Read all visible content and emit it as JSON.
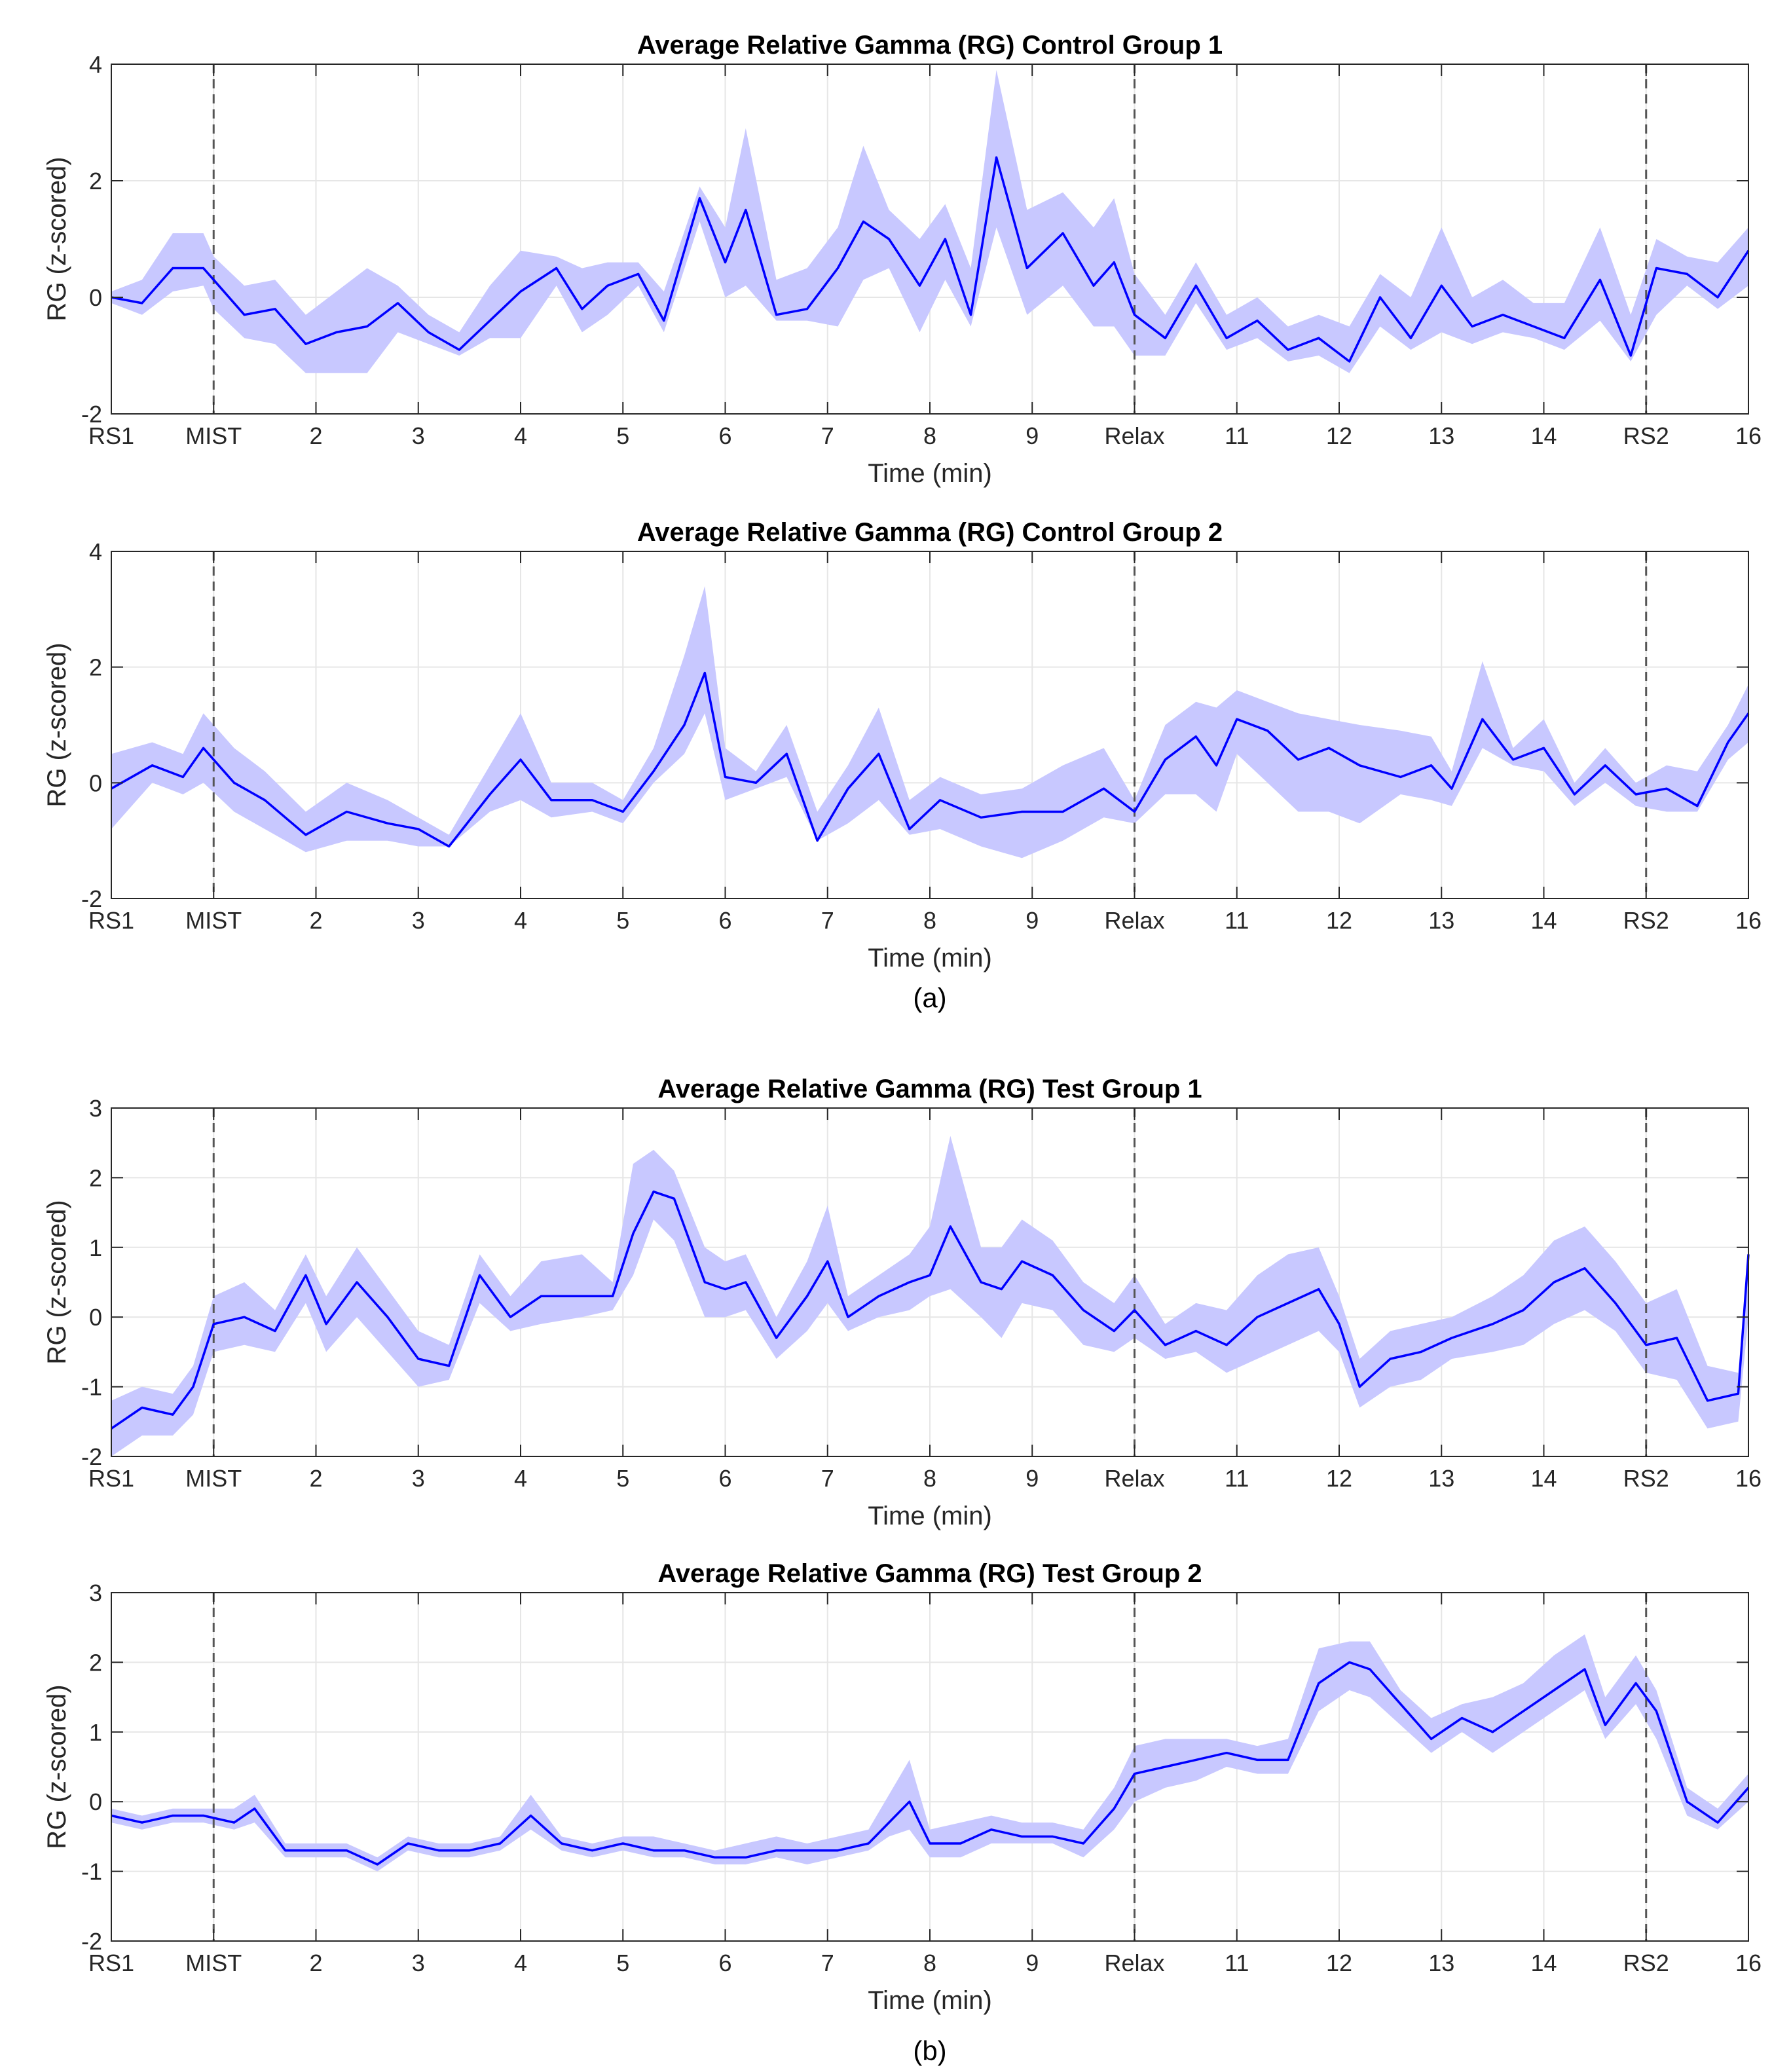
{
  "figure": {
    "label_a": "(a)",
    "label_b": "(b)"
  },
  "chart_data": [
    {
      "type": "line",
      "title": "Average Relative Gamma (RG) Control Group 1",
      "xlabel": "Time (min)",
      "ylabel": "RG (z-scored)",
      "xlim": [
        0,
        16
      ],
      "ylim": [
        -2,
        4
      ],
      "yticks": [
        -2,
        0,
        2,
        4
      ],
      "xtick_labels": [
        "RS1",
        "MIST",
        "2",
        "3",
        "4",
        "5",
        "6",
        "7",
        "8",
        "9",
        "Relax",
        "11",
        "12",
        "13",
        "14",
        "RS2",
        "16"
      ],
      "phase_markers": [
        1,
        10,
        15
      ],
      "grid": true,
      "line_color": "#0000ff",
      "band_color": "#c8c8ff",
      "x": [
        0,
        0.3,
        0.6,
        0.9,
        1.0,
        1.3,
        1.6,
        1.9,
        2.2,
        2.5,
        2.8,
        3.1,
        3.4,
        3.7,
        4.0,
        4.35,
        4.6,
        4.85,
        5.15,
        5.4,
        5.75,
        6.0,
        6.2,
        6.5,
        6.8,
        7.1,
        7.35,
        7.6,
        7.9,
        8.15,
        8.4,
        8.65,
        8.95,
        9.3,
        9.6,
        9.8,
        10.0,
        10.3,
        10.6,
        10.9,
        11.2,
        11.5,
        11.8,
        12.1,
        12.4,
        12.7,
        13.0,
        13.3,
        13.6,
        13.9,
        14.2,
        14.55,
        14.85,
        15.1,
        15.4,
        15.7,
        16.0
      ],
      "mean": [
        0.0,
        -0.1,
        0.5,
        0.5,
        0.3,
        -0.3,
        -0.2,
        -0.8,
        -0.6,
        -0.5,
        -0.1,
        -0.6,
        -0.9,
        -0.4,
        0.1,
        0.5,
        -0.2,
        0.2,
        0.4,
        -0.4,
        1.7,
        0.6,
        1.5,
        -0.3,
        -0.2,
        0.5,
        1.3,
        1.0,
        0.2,
        1.0,
        -0.3,
        2.4,
        0.5,
        1.1,
        0.2,
        0.6,
        -0.3,
        -0.7,
        0.2,
        -0.7,
        -0.4,
        -0.9,
        -0.7,
        -1.1,
        0.0,
        -0.7,
        0.2,
        -0.5,
        -0.3,
        -0.5,
        -0.7,
        0.3,
        -1.0,
        0.5,
        0.4,
        0.0,
        0.8
      ],
      "upper": [
        0.1,
        0.3,
        1.1,
        1.1,
        0.7,
        0.2,
        0.3,
        -0.3,
        0.1,
        0.5,
        0.2,
        -0.3,
        -0.6,
        0.2,
        0.8,
        0.7,
        0.5,
        0.6,
        0.6,
        0.1,
        1.9,
        1.2,
        2.9,
        0.3,
        0.5,
        1.2,
        2.6,
        1.5,
        1.0,
        1.6,
        0.5,
        3.9,
        1.5,
        1.8,
        1.2,
        1.7,
        0.4,
        -0.3,
        0.6,
        -0.3,
        0.0,
        -0.5,
        -0.3,
        -0.5,
        0.4,
        0.0,
        1.2,
        0.0,
        0.3,
        -0.1,
        -0.1,
        1.2,
        -0.3,
        1.0,
        0.7,
        0.6,
        1.2
      ],
      "lower": [
        -0.1,
        -0.3,
        0.1,
        0.2,
        -0.2,
        -0.7,
        -0.8,
        -1.3,
        -1.3,
        -1.3,
        -0.6,
        -0.8,
        -1.0,
        -0.7,
        -0.7,
        0.2,
        -0.6,
        -0.3,
        0.2,
        -0.6,
        1.3,
        0.0,
        0.2,
        -0.4,
        -0.4,
        -0.5,
        0.3,
        0.5,
        -0.6,
        0.3,
        -0.5,
        1.2,
        -0.3,
        0.2,
        -0.5,
        -0.5,
        -1.0,
        -1.0,
        -0.1,
        -0.9,
        -0.7,
        -1.1,
        -1.0,
        -1.3,
        -0.5,
        -0.9,
        -0.6,
        -0.8,
        -0.6,
        -0.7,
        -0.9,
        -0.4,
        -1.1,
        -0.3,
        0.2,
        -0.2,
        0.2
      ]
    },
    {
      "type": "line",
      "title": "Average Relative Gamma (RG) Control Group 2",
      "xlabel": "Time (min)",
      "ylabel": "RG (z-scored)",
      "xlim": [
        0,
        16
      ],
      "ylim": [
        -2,
        4
      ],
      "yticks": [
        -2,
        0,
        2,
        4
      ],
      "xtick_labels": [
        "RS1",
        "MIST",
        "2",
        "3",
        "4",
        "5",
        "6",
        "7",
        "8",
        "9",
        "Relax",
        "11",
        "12",
        "13",
        "14",
        "RS2",
        "16"
      ],
      "phase_markers": [
        1,
        10,
        15
      ],
      "grid": true,
      "line_color": "#0000ff",
      "band_color": "#c8c8ff",
      "x": [
        0,
        0.4,
        0.7,
        0.9,
        1.2,
        1.5,
        1.9,
        2.3,
        2.7,
        3.0,
        3.3,
        3.7,
        4.0,
        4.3,
        4.7,
        5.0,
        5.3,
        5.6,
        5.8,
        6.0,
        6.3,
        6.6,
        6.9,
        7.2,
        7.5,
        7.8,
        8.1,
        8.5,
        8.9,
        9.3,
        9.7,
        10.0,
        10.3,
        10.6,
        10.8,
        11.0,
        11.3,
        11.6,
        11.9,
        12.2,
        12.6,
        12.9,
        13.1,
        13.4,
        13.7,
        14.0,
        14.3,
        14.6,
        14.9,
        15.2,
        15.5,
        15.8,
        16.0
      ],
      "mean": [
        -0.1,
        0.3,
        0.1,
        0.6,
        0.0,
        -0.3,
        -0.9,
        -0.5,
        -0.7,
        -0.8,
        -1.1,
        -0.2,
        0.4,
        -0.3,
        -0.3,
        -0.5,
        0.2,
        1.0,
        1.9,
        0.1,
        0.0,
        0.5,
        -1.0,
        -0.1,
        0.5,
        -0.8,
        -0.3,
        -0.6,
        -0.5,
        -0.5,
        -0.1,
        -0.5,
        0.4,
        0.8,
        0.3,
        1.1,
        0.9,
        0.4,
        0.6,
        0.3,
        0.1,
        0.3,
        -0.1,
        1.1,
        0.4,
        0.6,
        -0.2,
        0.3,
        -0.2,
        -0.1,
        -0.4,
        0.7,
        1.2
      ],
      "upper": [
        0.5,
        0.7,
        0.5,
        1.2,
        0.6,
        0.2,
        -0.5,
        0.0,
        -0.3,
        -0.6,
        -0.9,
        0.3,
        1.2,
        0.0,
        0.0,
        -0.3,
        0.6,
        2.2,
        3.4,
        0.6,
        0.2,
        1.0,
        -0.5,
        0.3,
        1.3,
        -0.3,
        0.1,
        -0.2,
        -0.1,
        0.3,
        0.6,
        -0.3,
        1.0,
        1.4,
        1.3,
        1.6,
        1.4,
        1.2,
        1.1,
        1.0,
        0.9,
        0.8,
        0.2,
        2.1,
        0.6,
        1.1,
        0.0,
        0.6,
        0.0,
        0.3,
        0.2,
        1.0,
        1.7
      ],
      "lower": [
        -0.8,
        0.0,
        -0.2,
        0.0,
        -0.5,
        -0.8,
        -1.2,
        -1.0,
        -1.0,
        -1.1,
        -1.1,
        -0.5,
        -0.3,
        -0.6,
        -0.5,
        -0.7,
        0.0,
        0.5,
        1.2,
        -0.3,
        -0.1,
        0.1,
        -1.0,
        -0.7,
        -0.3,
        -0.9,
        -0.8,
        -1.1,
        -1.3,
        -1.0,
        -0.6,
        -0.7,
        -0.2,
        -0.2,
        -0.5,
        0.5,
        0.0,
        -0.5,
        -0.5,
        -0.7,
        -0.2,
        -0.3,
        -0.4,
        0.6,
        0.3,
        0.2,
        -0.4,
        0.0,
        -0.4,
        -0.5,
        -0.5,
        0.4,
        0.7
      ]
    },
    {
      "type": "line",
      "title": "Average Relative Gamma (RG) Test Group 1",
      "xlabel": "Time (min)",
      "ylabel": "RG (z-scored)",
      "xlim": [
        0,
        16
      ],
      "ylim": [
        -2,
        3
      ],
      "yticks": [
        -2,
        -1,
        0,
        1,
        2,
        3
      ],
      "xtick_labels": [
        "RS1",
        "MIST",
        "2",
        "3",
        "4",
        "5",
        "6",
        "7",
        "8",
        "9",
        "Relax",
        "11",
        "12",
        "13",
        "14",
        "RS2",
        "16"
      ],
      "phase_markers": [
        1,
        10,
        15
      ],
      "grid": true,
      "line_color": "#0000ff",
      "band_color": "#c8c8ff",
      "x": [
        0,
        0.3,
        0.6,
        0.8,
        1.0,
        1.3,
        1.6,
        1.9,
        2.1,
        2.4,
        2.7,
        3.0,
        3.3,
        3.6,
        3.9,
        4.2,
        4.6,
        4.9,
        5.1,
        5.3,
        5.5,
        5.8,
        6.0,
        6.2,
        6.5,
        6.8,
        7.0,
        7.2,
        7.5,
        7.8,
        8.0,
        8.2,
        8.5,
        8.7,
        8.9,
        9.2,
        9.5,
        9.8,
        10.0,
        10.3,
        10.6,
        10.9,
        11.2,
        11.5,
        11.8,
        12.0,
        12.2,
        12.5,
        12.8,
        13.1,
        13.5,
        13.8,
        14.1,
        14.4,
        14.7,
        15.0,
        15.3,
        15.6,
        15.9,
        16.0
      ],
      "mean": [
        -1.6,
        -1.3,
        -1.4,
        -1.0,
        -0.1,
        0.0,
        -0.2,
        0.6,
        -0.1,
        0.5,
        0.0,
        -0.6,
        -0.7,
        0.6,
        0.0,
        0.3,
        0.3,
        0.3,
        1.2,
        1.8,
        1.7,
        0.5,
        0.4,
        0.5,
        -0.3,
        0.3,
        0.8,
        0.0,
        0.3,
        0.5,
        0.6,
        1.3,
        0.5,
        0.4,
        0.8,
        0.6,
        0.1,
        -0.2,
        0.1,
        -0.4,
        -0.2,
        -0.4,
        0.0,
        0.2,
        0.4,
        -0.1,
        -1.0,
        -0.6,
        -0.5,
        -0.3,
        -0.1,
        0.1,
        0.5,
        0.7,
        0.2,
        -0.4,
        -0.3,
        -1.2,
        -1.1,
        0.9
      ],
      "upper": [
        -1.2,
        -1.0,
        -1.1,
        -0.7,
        0.3,
        0.5,
        0.1,
        0.9,
        0.3,
        1.0,
        0.4,
        -0.2,
        -0.4,
        0.9,
        0.3,
        0.8,
        0.9,
        0.5,
        2.2,
        2.4,
        2.1,
        1.0,
        0.8,
        0.9,
        0.0,
        0.8,
        1.6,
        0.3,
        0.6,
        0.9,
        1.3,
        2.6,
        1.0,
        1.0,
        1.4,
        1.1,
        0.5,
        0.2,
        0.6,
        -0.1,
        0.2,
        0.1,
        0.6,
        0.9,
        1.0,
        0.3,
        -0.6,
        -0.2,
        -0.1,
        0.0,
        0.3,
        0.6,
        1.1,
        1.3,
        0.8,
        0.2,
        0.4,
        -0.7,
        -0.8,
        0.9
      ],
      "lower": [
        -2.0,
        -1.7,
        -1.7,
        -1.4,
        -0.5,
        -0.4,
        -0.5,
        0.2,
        -0.5,
        0.0,
        -0.5,
        -1.0,
        -0.9,
        0.2,
        -0.2,
        -0.1,
        0.0,
        0.1,
        0.6,
        1.4,
        1.1,
        0.0,
        0.0,
        0.1,
        -0.6,
        -0.2,
        0.2,
        -0.2,
        0.0,
        0.1,
        0.3,
        0.4,
        0.0,
        -0.3,
        0.2,
        0.1,
        -0.4,
        -0.5,
        -0.3,
        -0.6,
        -0.5,
        -0.8,
        -0.6,
        -0.4,
        -0.2,
        -0.5,
        -1.3,
        -1.0,
        -0.9,
        -0.6,
        -0.5,
        -0.4,
        -0.1,
        0.1,
        -0.2,
        -0.8,
        -0.9,
        -1.6,
        -1.5,
        0.0
      ]
    },
    {
      "type": "line",
      "title": "Average Relative Gamma (RG) Test Group 2",
      "xlabel": "Time (min)",
      "ylabel": "RG (z-scored)",
      "xlim": [
        0,
        16
      ],
      "ylim": [
        -2,
        3
      ],
      "yticks": [
        -2,
        -1,
        0,
        1,
        2,
        3
      ],
      "xtick_labels": [
        "RS1",
        "MIST",
        "2",
        "3",
        "4",
        "5",
        "6",
        "7",
        "8",
        "9",
        "Relax",
        "11",
        "12",
        "13",
        "14",
        "RS2",
        "16"
      ],
      "phase_markers": [
        1,
        10,
        15
      ],
      "grid": true,
      "line_color": "#0000ff",
      "band_color": "#c8c8ff",
      "x": [
        0,
        0.3,
        0.6,
        0.9,
        1.2,
        1.4,
        1.7,
        2.0,
        2.3,
        2.6,
        2.9,
        3.2,
        3.5,
        3.8,
        4.1,
        4.4,
        4.7,
        5.0,
        5.3,
        5.6,
        5.9,
        6.2,
        6.5,
        6.8,
        7.1,
        7.4,
        7.6,
        7.8,
        8.0,
        8.3,
        8.6,
        8.9,
        9.2,
        9.5,
        9.8,
        10.0,
        10.3,
        10.6,
        10.9,
        11.2,
        11.5,
        11.8,
        12.1,
        12.3,
        12.6,
        12.9,
        13.2,
        13.5,
        13.8,
        14.1,
        14.4,
        14.6,
        14.9,
        15.1,
        15.4,
        15.7,
        16.0
      ],
      "mean": [
        -0.2,
        -0.3,
        -0.2,
        -0.2,
        -0.3,
        -0.1,
        -0.7,
        -0.7,
        -0.7,
        -0.9,
        -0.6,
        -0.7,
        -0.7,
        -0.6,
        -0.2,
        -0.6,
        -0.7,
        -0.6,
        -0.7,
        -0.7,
        -0.8,
        -0.8,
        -0.7,
        -0.7,
        -0.7,
        -0.6,
        -0.3,
        0.0,
        -0.6,
        -0.6,
        -0.4,
        -0.5,
        -0.5,
        -0.6,
        -0.1,
        0.4,
        0.5,
        0.6,
        0.7,
        0.6,
        0.6,
        1.7,
        2.0,
        1.9,
        1.4,
        0.9,
        1.2,
        1.0,
        1.3,
        1.6,
        1.9,
        1.1,
        1.7,
        1.3,
        0.0,
        -0.3,
        0.2
      ],
      "upper": [
        -0.1,
        -0.2,
        -0.1,
        -0.1,
        -0.1,
        0.1,
        -0.6,
        -0.6,
        -0.6,
        -0.8,
        -0.5,
        -0.6,
        -0.6,
        -0.5,
        0.1,
        -0.5,
        -0.6,
        -0.5,
        -0.5,
        -0.6,
        -0.7,
        -0.6,
        -0.5,
        -0.6,
        -0.5,
        -0.4,
        0.1,
        0.6,
        -0.4,
        -0.3,
        -0.2,
        -0.3,
        -0.3,
        -0.4,
        0.2,
        0.8,
        0.9,
        0.9,
        0.9,
        0.8,
        0.9,
        2.2,
        2.3,
        2.3,
        1.6,
        1.2,
        1.4,
        1.5,
        1.7,
        2.1,
        2.4,
        1.5,
        2.1,
        1.6,
        0.2,
        -0.1,
        0.4
      ],
      "lower": [
        -0.3,
        -0.4,
        -0.3,
        -0.3,
        -0.4,
        -0.3,
        -0.8,
        -0.8,
        -0.8,
        -1.0,
        -0.7,
        -0.8,
        -0.8,
        -0.7,
        -0.4,
        -0.7,
        -0.8,
        -0.7,
        -0.8,
        -0.8,
        -0.9,
        -0.9,
        -0.8,
        -0.9,
        -0.8,
        -0.7,
        -0.5,
        -0.4,
        -0.8,
        -0.8,
        -0.6,
        -0.6,
        -0.6,
        -0.8,
        -0.4,
        0.0,
        0.2,
        0.3,
        0.5,
        0.4,
        0.4,
        1.3,
        1.6,
        1.5,
        1.1,
        0.7,
        1.0,
        0.7,
        1.0,
        1.3,
        1.6,
        0.9,
        1.4,
        0.9,
        -0.2,
        -0.4,
        0.0
      ]
    }
  ]
}
